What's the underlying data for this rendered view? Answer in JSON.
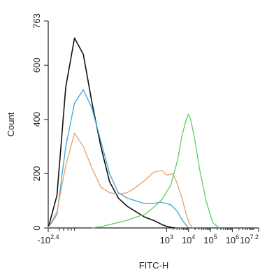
{
  "chart_data": {
    "type": "line",
    "title": "",
    "xlabel": "FITC-H",
    "ylabel": "Count",
    "ylim": [
      0,
      763
    ],
    "y_ticks": [
      "0",
      "200",
      "400",
      "600",
      "763"
    ],
    "x_scale": "log",
    "x_ticks": [
      {
        "label": "-10",
        "sup": "2.4"
      },
      {
        "label": "10",
        "sup": "3"
      },
      {
        "label": "10",
        "sup": "4"
      },
      {
        "label": "10",
        "sup": "5"
      },
      {
        "label": "10",
        "sup": "6"
      },
      {
        "label": "10",
        "sup": "7.2"
      }
    ],
    "grid": false,
    "series": [
      {
        "color": "#111111",
        "x": [
          -2.4,
          -2.0,
          -1.6,
          -1.2,
          -0.8,
          -0.4,
          0.0,
          0.4,
          0.8,
          1.2,
          1.6,
          2.0,
          2.4,
          2.6,
          2.8,
          3.0,
          3.2,
          3.4
        ],
        "y": [
          0,
          120,
          520,
          700,
          640,
          460,
          300,
          170,
          110,
          80,
          60,
          40,
          28,
          20,
          12,
          6,
          2,
          0
        ]
      },
      {
        "color": "#3aa6d6",
        "x": [
          -2.4,
          -2.0,
          -1.6,
          -1.2,
          -0.8,
          -0.4,
          0.0,
          0.4,
          0.8,
          1.2,
          1.6,
          2.0,
          2.4,
          2.7,
          3.0,
          3.2,
          3.5,
          3.7,
          3.9,
          4.0
        ],
        "y": [
          0,
          50,
          300,
          460,
          510,
          440,
          320,
          200,
          130,
          110,
          100,
          90,
          90,
          95,
          90,
          85,
          60,
          30,
          10,
          0
        ]
      },
      {
        "color": "#e8a070",
        "x": [
          -2.4,
          -2.0,
          -1.6,
          -1.2,
          -0.8,
          -0.4,
          0.0,
          0.4,
          0.8,
          1.2,
          1.6,
          2.0,
          2.4,
          2.8,
          3.0,
          3.3,
          3.5,
          3.7,
          3.9,
          4.05,
          4.2
        ],
        "y": [
          0,
          60,
          230,
          350,
          300,
          220,
          150,
          130,
          125,
          130,
          150,
          175,
          205,
          212,
          195,
          200,
          160,
          110,
          50,
          15,
          0
        ]
      },
      {
        "color": "#5ad25a",
        "x": [
          -0.4,
          0.0,
          0.4,
          0.8,
          1.2,
          1.6,
          2.0,
          2.4,
          2.8,
          3.2,
          3.5,
          3.7,
          3.9,
          4.0,
          4.1,
          4.3,
          4.5,
          4.8,
          5.1,
          5.4
        ],
        "y": [
          0,
          5,
          12,
          20,
          28,
          40,
          50,
          75,
          105,
          160,
          250,
          340,
          400,
          420,
          400,
          320,
          220,
          100,
          20,
          0
        ]
      }
    ]
  }
}
